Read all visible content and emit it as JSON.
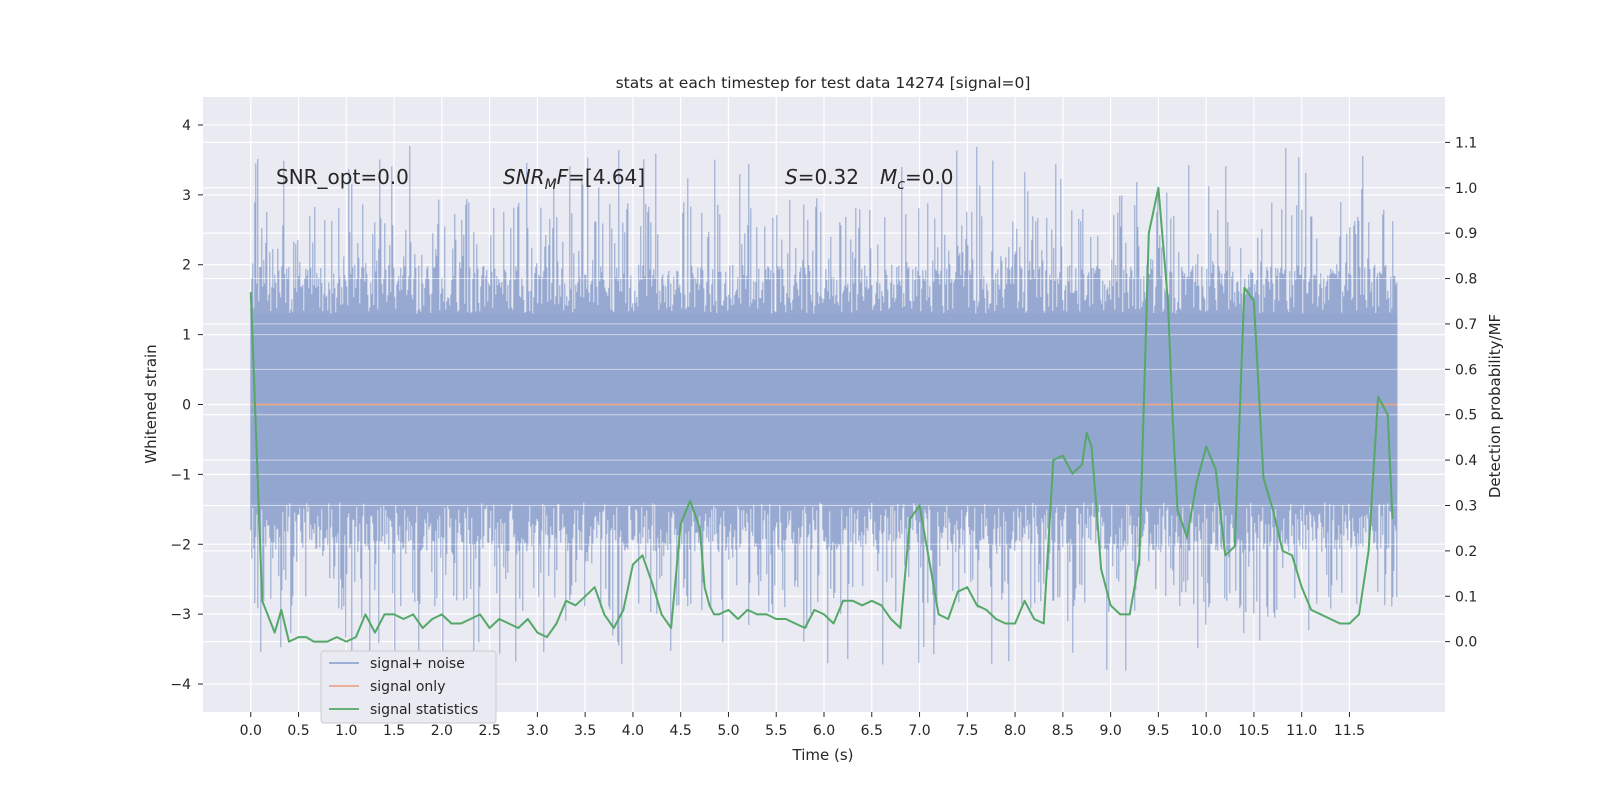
{
  "chart_data": {
    "type": "line",
    "title": "stats at each timestep for test data 14274 [signal=0]",
    "xlabel": "Time (s)",
    "ylabel": "Whitened strain",
    "y2label": "Detection probability/MF",
    "xlim": [
      -0.5,
      12.5
    ],
    "ylim": [
      -4.4,
      4.4
    ],
    "y2lim": [
      -0.155,
      1.2
    ],
    "x_ticks": [
      0.0,
      0.5,
      1.0,
      1.5,
      2.0,
      2.5,
      3.0,
      3.5,
      4.0,
      4.5,
      5.0,
      5.5,
      6.0,
      6.5,
      7.0,
      7.5,
      8.0,
      8.5,
      9.0,
      9.5,
      10.0,
      10.5,
      11.0,
      11.5
    ],
    "x_tick_labels": [
      "0.0",
      "0.5",
      "1.0",
      "1.5",
      "2.0",
      "2.5",
      "3.0",
      "3.5",
      "4.0",
      "4.5",
      "5.0",
      "5.5",
      "6.0",
      "6.5",
      "7.0",
      "7.5",
      "8.0",
      "8.5",
      "9.0",
      "9.5",
      "10.0",
      "10.5",
      "11.0",
      "11.5"
    ],
    "y_ticks": [
      4,
      3,
      2,
      1,
      0,
      -1,
      -2,
      -3,
      -4
    ],
    "y_tick_labels": [
      "4",
      "3",
      "2",
      "1",
      "0",
      "−1",
      "−2",
      "−3",
      "−4"
    ],
    "y2_ticks": [
      1.1,
      1.0,
      0.9,
      0.8,
      0.7,
      0.6,
      0.5,
      0.4,
      0.3,
      0.2,
      0.1,
      0.0
    ],
    "y2_tick_labels": [
      "1.1",
      "1.0",
      "0.9",
      "0.8",
      "0.7",
      "0.6",
      "0.5",
      "0.4",
      "0.3",
      "0.2",
      "0.1",
      "0.0"
    ],
    "grid": true,
    "legend_position": "lower-left",
    "annotations": {
      "snr_opt": "SNR_opt=0.0",
      "snr_mf_prefix": "SNR",
      "snr_mf_sub": "M",
      "snr_mf_suffix": "F=[4.64]",
      "s_label": "S",
      "s_value": "=0.32",
      "mc_label": "M",
      "mc_sub": "c",
      "mc_value": "=0.0"
    },
    "series": [
      {
        "name": "signal+ noise",
        "color": "#92a5cf",
        "x_range": [
          0.0,
          12.0
        ],
        "band": [
          -1.4,
          1.3
        ],
        "spike_max": 4.0,
        "spike_min": -4.1,
        "sample_rate_hz": 2048,
        "display": "band"
      },
      {
        "name": "signal only",
        "color": "#e8a889",
        "x": [
          0.0,
          12.0
        ],
        "y": [
          0.0,
          0.0
        ]
      },
      {
        "name": "signal statistics",
        "color": "#55a868",
        "x": [
          0.0,
          0.12,
          0.25,
          0.32,
          0.4,
          0.5,
          0.58,
          0.66,
          0.72,
          0.8,
          0.9,
          1.0,
          1.1,
          1.2,
          1.3,
          1.4,
          1.5,
          1.6,
          1.7,
          1.8,
          1.9,
          2.0,
          2.1,
          2.2,
          2.3,
          2.4,
          2.5,
          2.6,
          2.7,
          2.8,
          2.9,
          3.0,
          3.1,
          3.2,
          3.3,
          3.4,
          3.5,
          3.6,
          3.7,
          3.8,
          3.9,
          4.0,
          4.1,
          4.2,
          4.3,
          4.4,
          4.5,
          4.6,
          4.7,
          4.75,
          4.8,
          4.85,
          4.9,
          5.0,
          5.1,
          5.2,
          5.3,
          5.4,
          5.5,
          5.6,
          5.7,
          5.8,
          5.9,
          6.0,
          6.1,
          6.2,
          6.3,
          6.4,
          6.5,
          6.6,
          6.7,
          6.8,
          6.9,
          7.0,
          7.1,
          7.2,
          7.3,
          7.4,
          7.5,
          7.6,
          7.7,
          7.8,
          7.9,
          8.0,
          8.1,
          8.2,
          8.3,
          8.4,
          8.5,
          8.6,
          8.7,
          8.75,
          8.8,
          8.85,
          8.9,
          9.0,
          9.1,
          9.2,
          9.3,
          9.4,
          9.5,
          9.6,
          9.65,
          9.7,
          9.8,
          9.9,
          10.0,
          10.1,
          10.2,
          10.3,
          10.4,
          10.5,
          10.6,
          10.7,
          10.8,
          10.9,
          11.0,
          11.1,
          11.2,
          11.3,
          11.4,
          11.5,
          11.6,
          11.7,
          11.8,
          11.9,
          11.95
        ],
        "y": [
          0.77,
          0.09,
          0.02,
          0.07,
          0.0,
          0.01,
          0.01,
          0.0,
          0.0,
          0.0,
          0.01,
          0.0,
          0.01,
          0.06,
          0.02,
          0.06,
          0.06,
          0.05,
          0.06,
          0.03,
          0.05,
          0.06,
          0.04,
          0.04,
          0.05,
          0.06,
          0.03,
          0.05,
          0.04,
          0.03,
          0.05,
          0.02,
          0.01,
          0.04,
          0.09,
          0.08,
          0.1,
          0.12,
          0.06,
          0.03,
          0.07,
          0.17,
          0.19,
          0.13,
          0.06,
          0.03,
          0.26,
          0.31,
          0.25,
          0.12,
          0.08,
          0.06,
          0.06,
          0.07,
          0.05,
          0.07,
          0.06,
          0.06,
          0.05,
          0.05,
          0.04,
          0.03,
          0.07,
          0.06,
          0.04,
          0.09,
          0.09,
          0.08,
          0.09,
          0.08,
          0.05,
          0.03,
          0.27,
          0.3,
          0.18,
          0.06,
          0.05,
          0.11,
          0.12,
          0.08,
          0.07,
          0.05,
          0.04,
          0.04,
          0.09,
          0.05,
          0.04,
          0.4,
          0.41,
          0.37,
          0.39,
          0.46,
          0.43,
          0.3,
          0.16,
          0.08,
          0.06,
          0.06,
          0.18,
          0.9,
          1.0,
          0.75,
          0.49,
          0.29,
          0.23,
          0.35,
          0.43,
          0.38,
          0.19,
          0.21,
          0.78,
          0.75,
          0.36,
          0.29,
          0.2,
          0.19,
          0.12,
          0.07,
          0.06,
          0.05,
          0.04,
          0.04,
          0.06,
          0.2,
          0.54,
          0.5,
          0.27
        ]
      }
    ]
  }
}
